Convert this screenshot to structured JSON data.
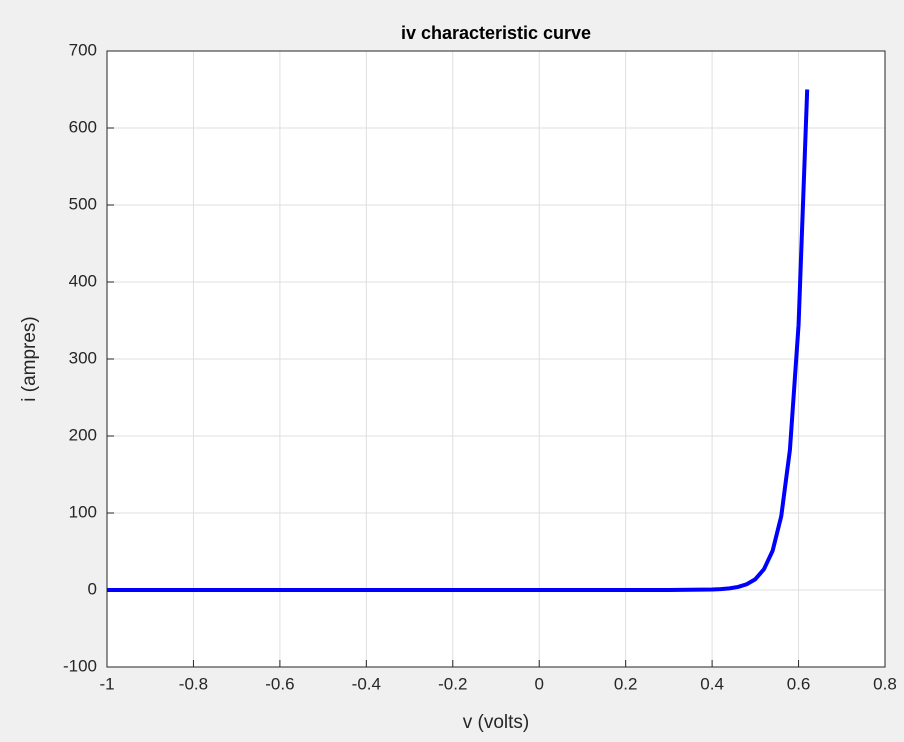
{
  "chart_data": {
    "type": "line",
    "title": "iv characteristic curve",
    "x_label": "v (volts)",
    "y_label": "i (ampres)",
    "x": [
      -1,
      -0.5,
      0,
      0.3,
      0.4,
      0.42,
      0.44,
      0.46,
      0.48,
      0.5,
      0.52,
      0.54,
      0.56,
      0.58,
      0.6,
      0.62
    ],
    "series": [
      {
        "name": "i",
        "color": "#0000ff",
        "values": [
          0,
          0,
          0,
          0,
          0.6,
          1.1,
          2.1,
          4,
          7.5,
          14,
          27,
          51,
          96,
          182,
          344,
          650
        ]
      }
    ],
    "xlim": [
      -1,
      0.8
    ],
    "xticks": [
      -1,
      -0.8,
      -0.6,
      -0.4,
      -0.2,
      0,
      0.2,
      0.4,
      0.6,
      0.8
    ],
    "ylim": [
      -100,
      700
    ],
    "yticks": [
      -100,
      0,
      100,
      200,
      300,
      400,
      500,
      600,
      700
    ],
    "grid": true
  }
}
